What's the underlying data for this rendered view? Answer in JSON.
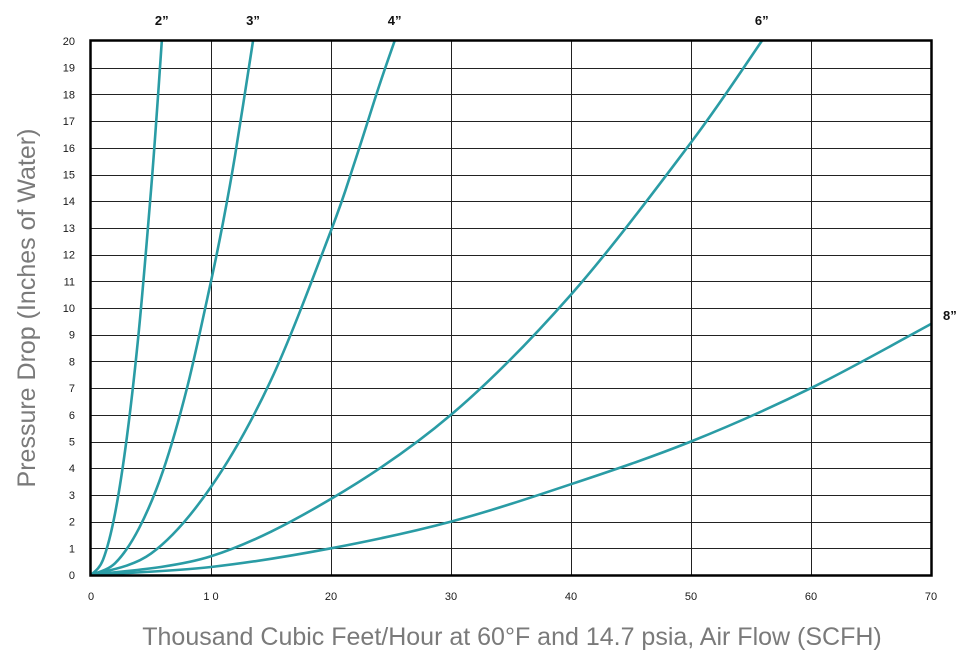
{
  "chart_data": {
    "type": "line",
    "title": "",
    "xlabel": "Thousand Cubic Feet/Hour at 60°F and 14.7 psia, Air Flow (SCFH)",
    "ylabel": "Pressure Drop (Inches of Water)",
    "xlim": [
      0,
      70
    ],
    "ylim": [
      0,
      20
    ],
    "x_ticks": [
      0,
      10,
      20,
      30,
      40,
      50,
      60,
      70
    ],
    "x_tick_labels": [
      "0",
      "1 0",
      "20",
      "30",
      "40",
      "50",
      "60",
      "70"
    ],
    "y_ticks": [
      0,
      1,
      2,
      3,
      4,
      5,
      6,
      7,
      8,
      9,
      10,
      11,
      12,
      13,
      14,
      15,
      16,
      17,
      18,
      19,
      20
    ],
    "grid": true,
    "line_color": "#2a9ca5",
    "series": [
      {
        "name": "2”",
        "x": [
          0,
          1,
          2,
          3,
          4,
          5,
          5.5,
          5.9
        ],
        "y": [
          0,
          0.57,
          2.3,
          5.2,
          9.2,
          14.4,
          17.4,
          20
        ]
      },
      {
        "name": "3”",
        "x": [
          0,
          2,
          4,
          6,
          8,
          10,
          11,
          12,
          13.5
        ],
        "y": [
          0,
          0.44,
          1.75,
          3.9,
          7.0,
          11.0,
          13.2,
          15.7,
          20
        ]
      },
      {
        "name": "4”",
        "x": [
          0,
          5,
          10,
          15,
          20,
          22,
          24,
          25.3
        ],
        "y": [
          0,
          0.8,
          3.3,
          7.3,
          12.9,
          15.5,
          18.3,
          20
        ]
      },
      {
        "name": "6”",
        "x": [
          0,
          10,
          20,
          30,
          40,
          50,
          55.9
        ],
        "y": [
          0,
          0.7,
          2.85,
          6.0,
          10.5,
          16.2,
          20
        ]
      },
      {
        "name": "8”",
        "x": [
          0,
          10,
          20,
          30,
          40,
          50,
          60,
          70
        ],
        "y": [
          0,
          0.3,
          1.0,
          2.0,
          3.4,
          5.0,
          7.0,
          9.4
        ]
      }
    ]
  }
}
